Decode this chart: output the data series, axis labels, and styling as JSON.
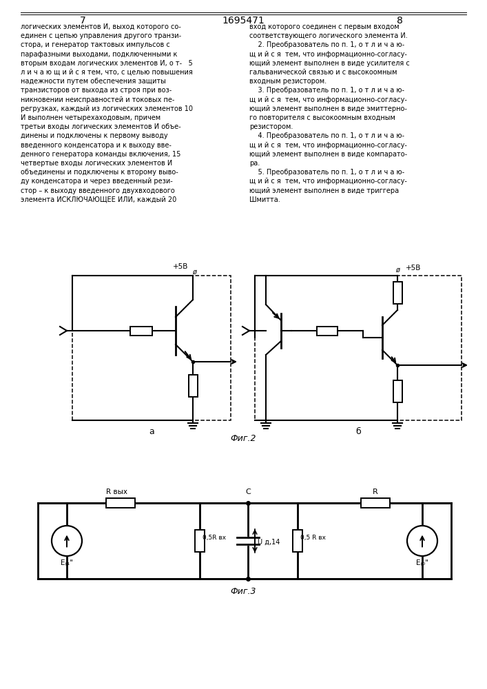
{
  "page_num_left": "7",
  "page_num_center": "1695471",
  "page_num_right": "8",
  "background_color": "#ffffff",
  "text_color": "#000000",
  "line_color": "#000000"
}
